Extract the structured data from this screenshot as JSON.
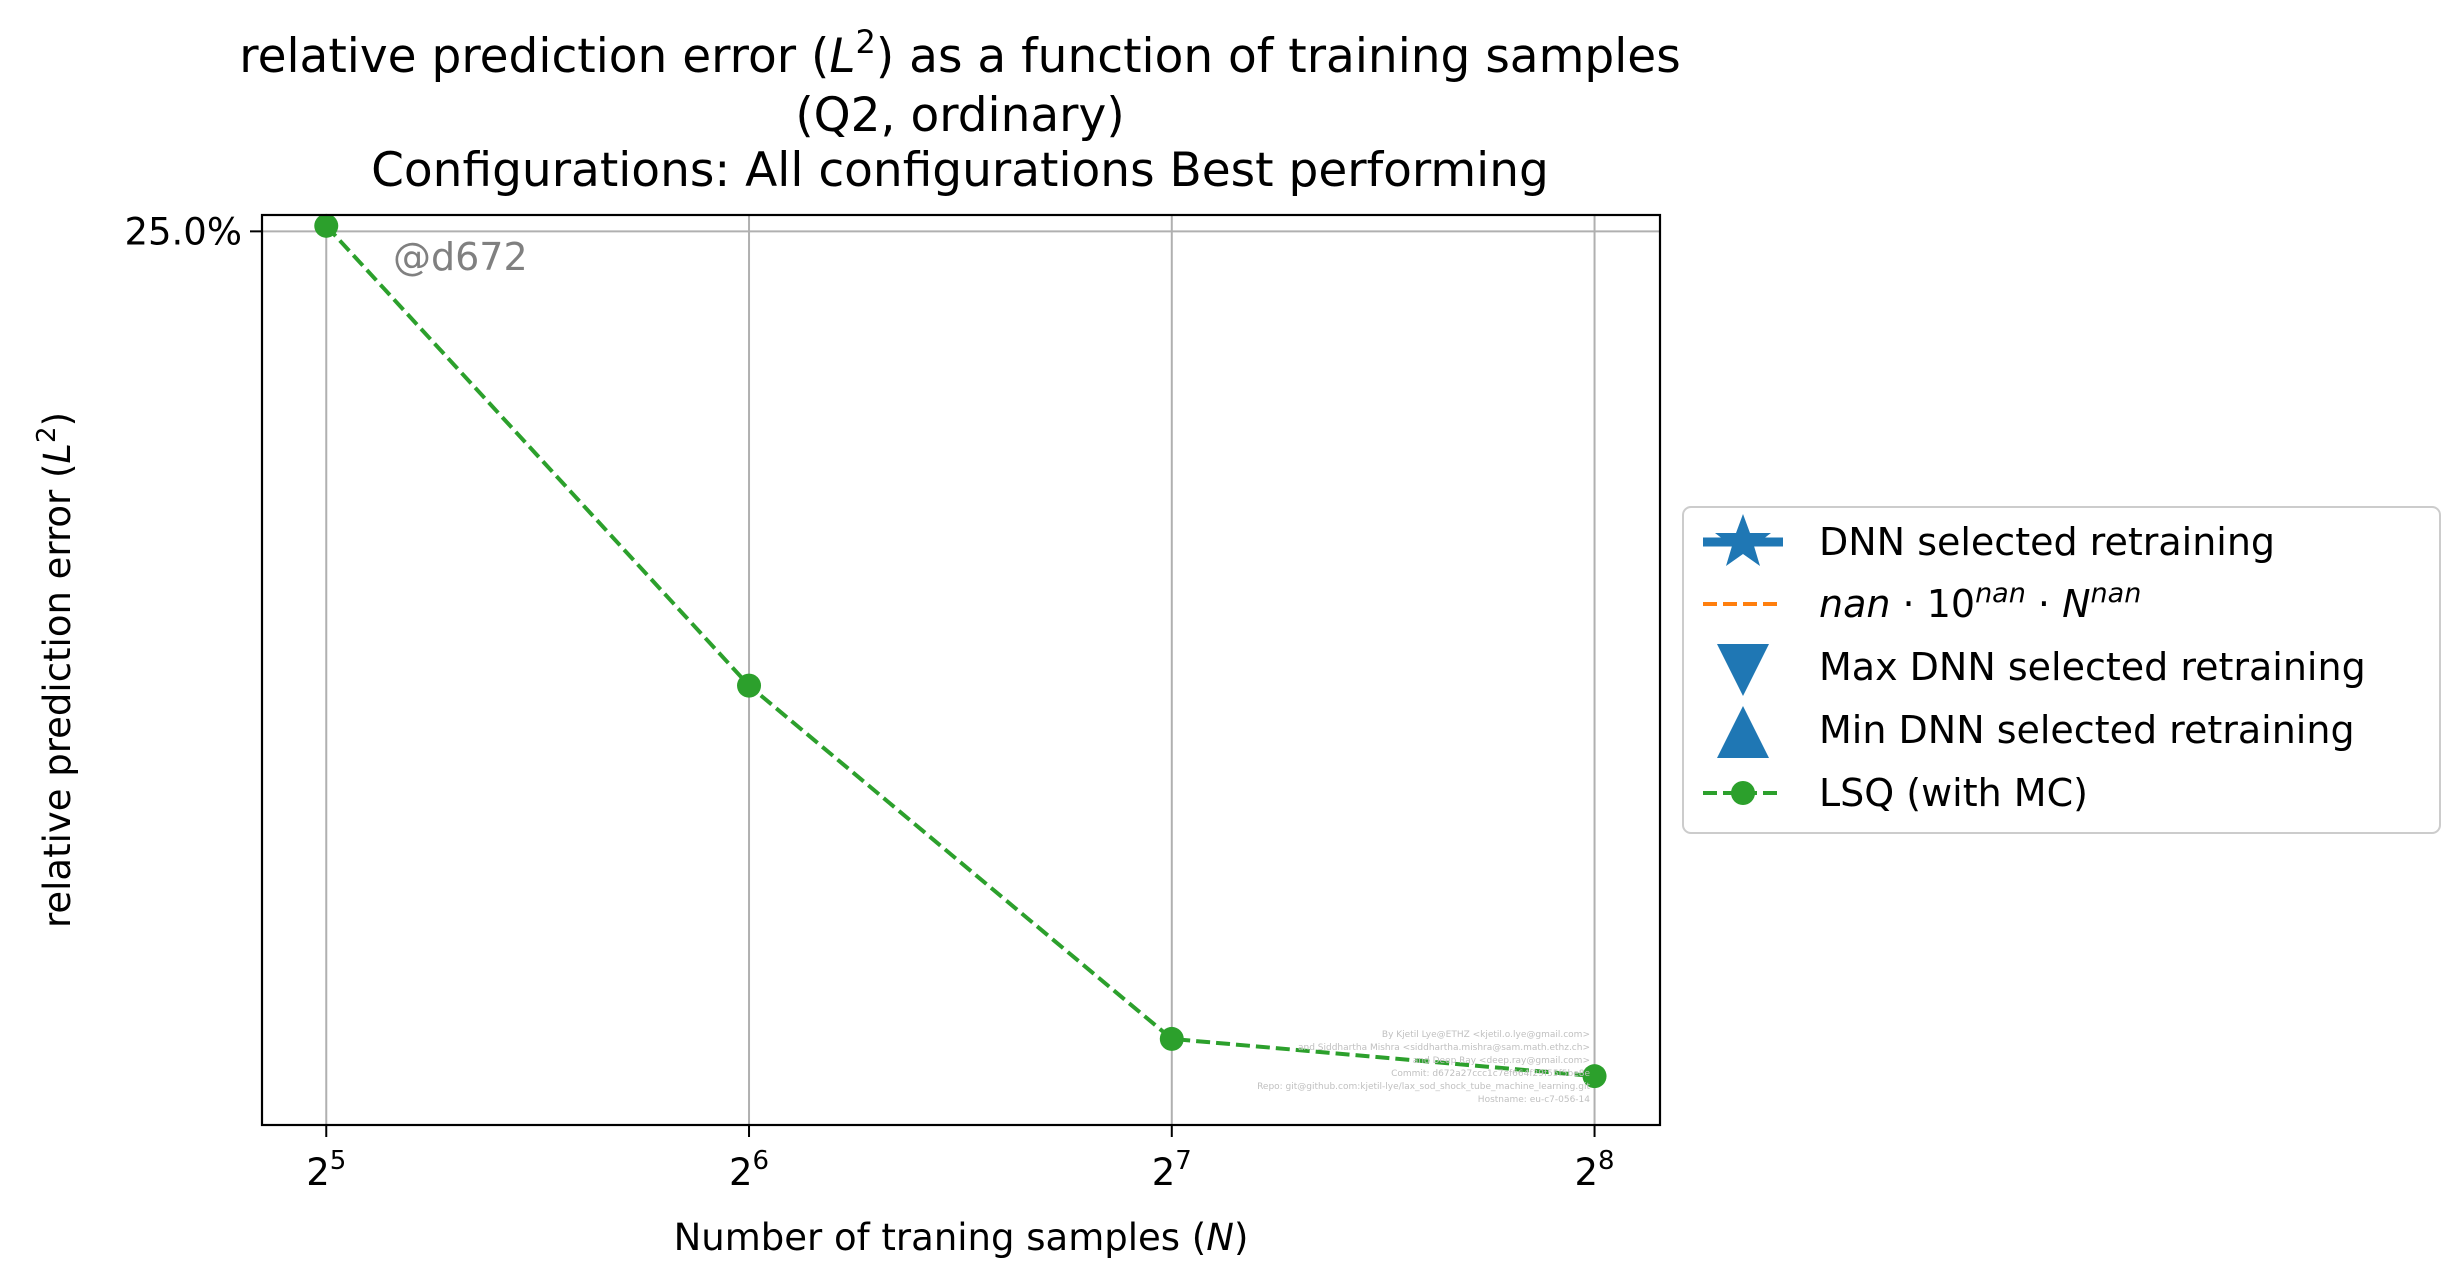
{
  "chart_data": {
    "type": "line",
    "title_lines": [
      "relative prediction error (L²) as a function of training samples",
      "(Q2, ordinary)",
      "Configurations: All configurations Best performing"
    ],
    "xlabel": "Number of traning samples (N)",
    "ylabel": "relative prediction error (L²)",
    "x_scale": "log2",
    "y_scale": "log",
    "x_ticks": [
      {
        "base": "2",
        "exp": "5",
        "value": 32
      },
      {
        "base": "2",
        "exp": "6",
        "value": 64
      },
      {
        "base": "2",
        "exp": "7",
        "value": 128
      },
      {
        "base": "2",
        "exp": "8",
        "value": 256
      }
    ],
    "y_ticks": [
      {
        "label": "25.0%",
        "value": 0.25
      }
    ],
    "xlim": [
      28.8,
      285
    ],
    "ylim": [
      0.0193,
      0.262
    ],
    "grid": true,
    "series": [
      {
        "name": "LSQ (with MC)",
        "color": "#2ca02c",
        "style": "dashed",
        "marker": "circle",
        "x": [
          32,
          64,
          128,
          256
        ],
        "y": [
          0.254,
          0.068,
          0.0247,
          0.0222
        ]
      }
    ],
    "legend": {
      "placement": "outside-right",
      "entries": [
        {
          "label": "DNN selected retraining",
          "marker": "star",
          "color": "#1f77b4"
        },
        {
          "label": "nan · 10^nan · N^nan",
          "marker": "dash-line",
          "color": "#ff7f0e"
        },
        {
          "label": "Max DNN selected retraining",
          "marker": "triangle-down",
          "color": "#1f77b4"
        },
        {
          "label": "Min DNN selected retraining",
          "marker": "triangle-up",
          "color": "#1f77b4"
        },
        {
          "label": "LSQ (with MC)",
          "marker": "circle-dashed",
          "color": "#2ca02c"
        }
      ]
    },
    "annotations": {
      "watermark": "@d672",
      "credits": [
        "By Kjetil Lye@ETHZ <kjetil.o.lye@gmail.com>",
        "and Siddhartha Mishra <siddhartha.mishra@sam.math.ethz.ch>",
        "and Deep Ray <deep.ray@gmail.com>",
        "Commit: d672a27ccc1c7ef664f29f55f5be8e",
        "Repo: git@github.com:kjetil-lye/lax_sod_shock_tube_machine_learning.git",
        "Hostname: eu-c7-056-14"
      ]
    }
  }
}
